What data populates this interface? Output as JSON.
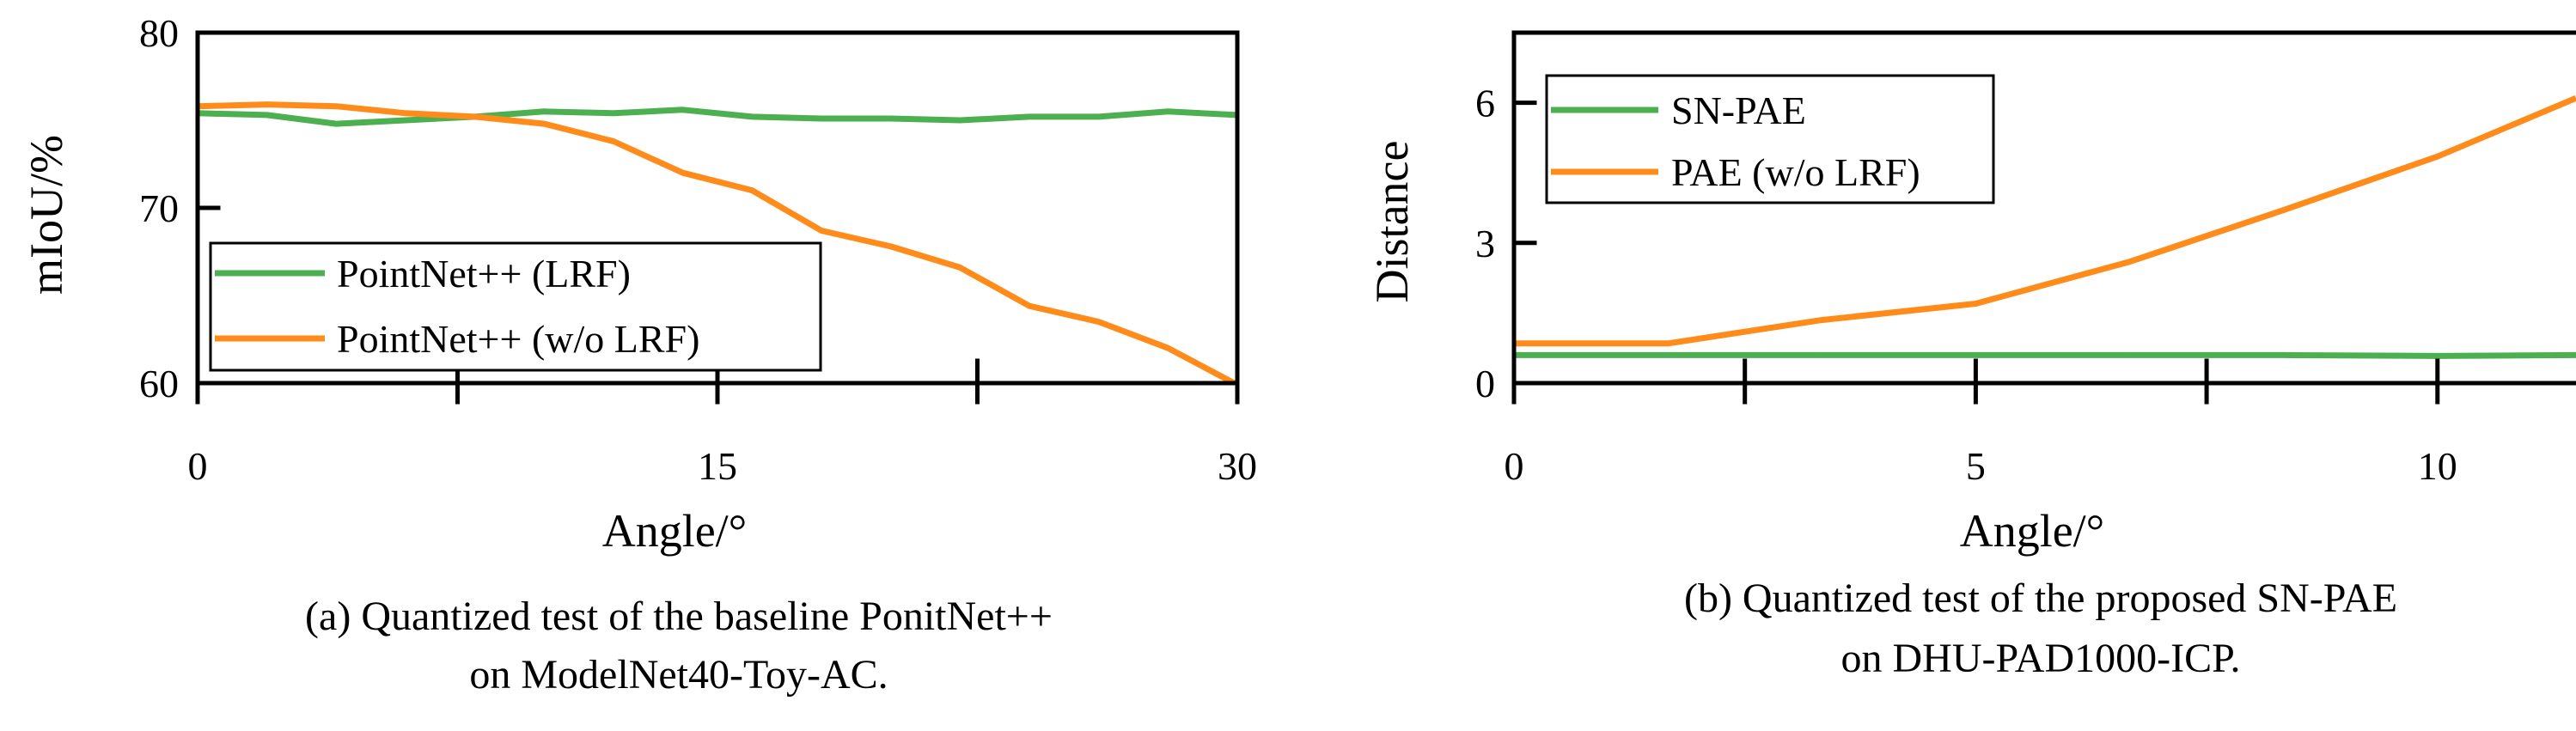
{
  "colors": {
    "green": "#4caf50",
    "orange": "#ff8c1a",
    "axis": "#000000"
  },
  "chart_data": [
    {
      "type": "line",
      "xlabel": "Angle/°",
      "ylabel": "mIoU/%",
      "xlim": [
        0,
        30
      ],
      "ylim": [
        60,
        80
      ],
      "xticks": [
        0,
        15,
        30
      ],
      "xticks_minor": [
        7.5,
        22.5
      ],
      "yticks": [
        60,
        70,
        80
      ],
      "xtick_labels": [
        "0",
        "15",
        "30"
      ],
      "ytick_labels": [
        "60",
        "70",
        "80"
      ],
      "caption_line1": "(a) Quantized test of the baseline PonitNet++",
      "caption_line2": "on ModelNet40-Toy-AC.",
      "legend_position": "bottom-left",
      "series": [
        {
          "name": "PointNet++ (LRF)",
          "color_key": "green",
          "x": [
            0,
            2,
            4,
            6,
            8,
            10,
            12,
            14,
            16,
            18,
            20,
            22,
            24,
            26,
            28,
            30
          ],
          "y": [
            75.4,
            75.3,
            74.8,
            75.0,
            75.2,
            75.5,
            75.4,
            75.6,
            75.2,
            75.1,
            75.1,
            75.0,
            75.2,
            75.2,
            75.5,
            75.3
          ]
        },
        {
          "name": "PointNet++ (w/o LRF)",
          "color_key": "orange",
          "x": [
            0,
            2,
            4,
            6,
            8,
            10,
            12,
            14,
            16,
            18,
            20,
            22,
            24,
            26,
            28,
            30
          ],
          "y": [
            75.8,
            75.9,
            75.8,
            75.4,
            75.2,
            74.8,
            73.8,
            72.0,
            71.0,
            68.7,
            67.8,
            66.6,
            64.4,
            63.5,
            62.0,
            59.9
          ]
        }
      ]
    },
    {
      "type": "line",
      "xlabel": "Angle/°",
      "ylabel": "Distance",
      "xlim": [
        0,
        11.5
      ],
      "ylim": [
        0,
        7.5
      ],
      "xticks": [
        0,
        5,
        10
      ],
      "xticks_minor": [
        2.5,
        7.5
      ],
      "yticks": [
        0,
        3,
        6
      ],
      "xtick_labels": [
        "0",
        "5",
        "10"
      ],
      "ytick_labels": [
        "0",
        "3",
        "6"
      ],
      "caption_line1": "(b) Quantized test of the proposed SN-PAE",
      "caption_line2": "on DHU-PAD1000-ICP.",
      "legend_position": "top-left",
      "series": [
        {
          "name": "SN-PAE",
          "color_key": "green",
          "x": [
            0,
            1.67,
            3.33,
            5,
            6.67,
            8.33,
            10,
            11.5
          ],
          "y": [
            0.6,
            0.6,
            0.6,
            0.6,
            0.6,
            0.6,
            0.58,
            0.6
          ]
        },
        {
          "name": "PAE (w/o LRF)",
          "color_key": "orange",
          "x": [
            0,
            1.67,
            3.33,
            5,
            6.67,
            8.33,
            10,
            11.5
          ],
          "y": [
            0.85,
            0.85,
            1.35,
            1.7,
            2.6,
            3.7,
            4.85,
            6.1
          ]
        }
      ]
    }
  ]
}
